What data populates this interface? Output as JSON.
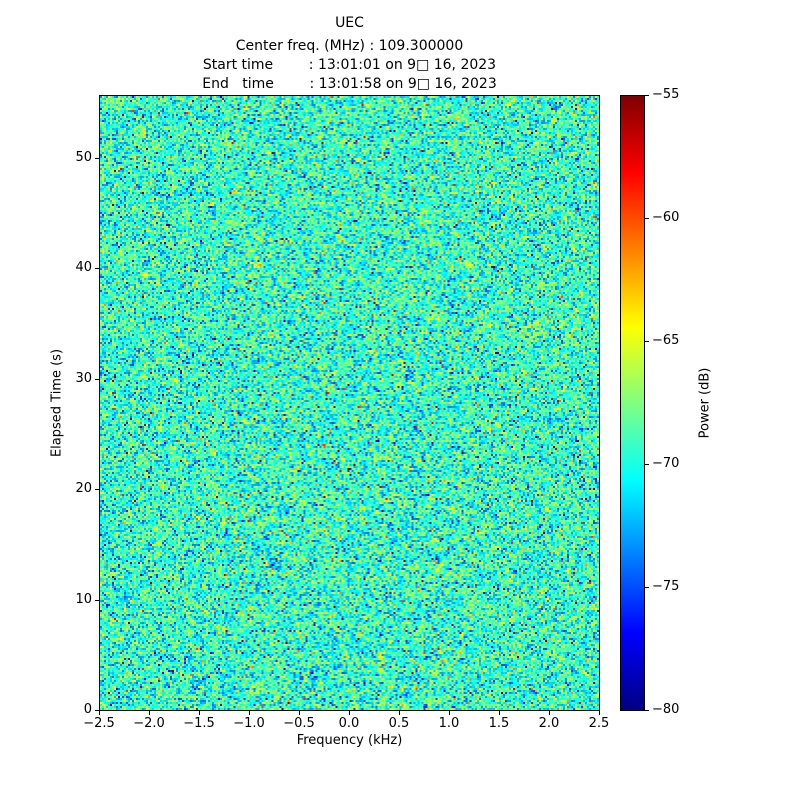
{
  "chart_data": {
    "type": "heatmap",
    "title": "UEC",
    "header_lines": [
      "Center freq. (MHz) : 109.300000",
      "Start time        : 13:01:01 on 9□ 16, 2023",
      "End   time        : 13:01:58 on 9□ 16, 2023"
    ],
    "xlabel": "Frequency (kHz)",
    "ylabel": "Elapsed Time (s)",
    "x_range": [
      -2.5,
      2.5
    ],
    "y_range": [
      0,
      55.7
    ],
    "x_ticks": [
      -2.5,
      -2.0,
      -1.5,
      -1.0,
      -0.5,
      0.0,
      0.5,
      1.0,
      1.5,
      2.0,
      2.5
    ],
    "x_tick_labels": [
      "−2.5",
      "−2.0",
      "−1.5",
      "−1.0",
      "−0.5",
      "0.0",
      "0.5",
      "1.0",
      "1.5",
      "2.0",
      "2.5"
    ],
    "y_ticks": [
      0,
      10,
      20,
      30,
      40,
      50
    ],
    "y_tick_labels": [
      "0",
      "10",
      "20",
      "30",
      "40",
      "50"
    ],
    "grid": false,
    "colorbar": {
      "label": "Power (dB)",
      "vmin": -80,
      "vmax": -55,
      "ticks": [
        -55,
        -60,
        -65,
        -70,
        -75,
        -80
      ],
      "tick_labels": [
        "−55",
        "−60",
        "−65",
        "−70",
        "−75",
        "−80"
      ],
      "colormap": "jet",
      "gradient_stops": [
        "#000080",
        "#0000FF",
        "#0080FF",
        "#00FFFF",
        "#80FF80",
        "#FFFF00",
        "#FF8000",
        "#FF0000",
        "#800000"
      ]
    },
    "noise": {
      "description": "Uniform broadband noise field across full frequency/time extent; no coherent signal visible; dominant level around −70 dB (cyan/green speckle) with sparse orange/red specks up to ≈ −55 dB",
      "mean_db": -69.5,
      "std_db": 2.7,
      "hot_speck_prob": 0.005
    }
  }
}
